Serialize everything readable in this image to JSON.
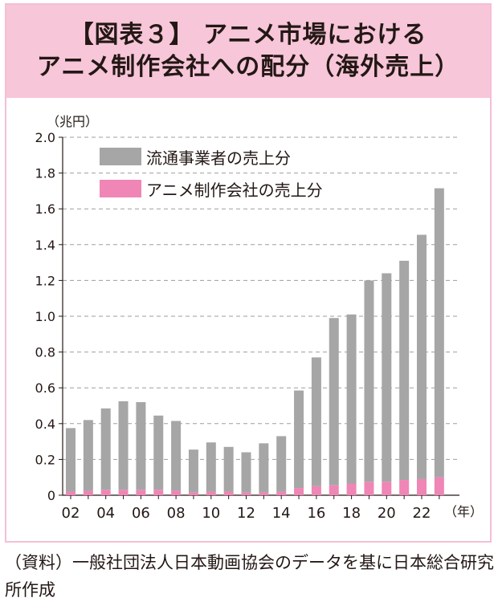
{
  "header": {
    "line1": "【図表３】 アニメ市場における",
    "line2": "アニメ制作会社への配分（海外売上）"
  },
  "source_note": "（資料）一般社団法人日本動画協会のデータを基に日本総合研究所作成",
  "colors": {
    "header_bg": "#f7c6d9",
    "distributor": "#a6a6a6",
    "studio": "#ef86b5"
  },
  "chart_data": {
    "type": "bar",
    "stacked": true,
    "unit_label": "（兆円）",
    "x_unit_label": "（年）",
    "x": [
      2002,
      2003,
      2004,
      2005,
      2006,
      2007,
      2008,
      2009,
      2010,
      2011,
      2012,
      2013,
      2014,
      2015,
      2016,
      2017,
      2018,
      2019,
      2020,
      2021,
      2022,
      2023
    ],
    "x_tick_labels": [
      "02",
      "04",
      "06",
      "08",
      "10",
      "12",
      "14",
      "16",
      "18",
      "20",
      "22"
    ],
    "x_tick_years": [
      2002,
      2004,
      2006,
      2008,
      2010,
      2012,
      2014,
      2016,
      2018,
      2020,
      2022
    ],
    "ylim": [
      0,
      2.0
    ],
    "yticks": [
      0,
      0.2,
      0.4,
      0.6,
      0.8,
      1.0,
      1.2,
      1.4,
      1.6,
      1.8,
      2.0
    ],
    "ytick_labels": [
      "0",
      "0.2",
      "0.4",
      "0.6",
      "0.8",
      "1.0",
      "1.2",
      "1.4",
      "1.6",
      "1.8",
      "2.0"
    ],
    "grid": true,
    "legend_position": "top-left",
    "series": [
      {
        "name": "アニメ制作会社の売上分",
        "values": [
          0.02,
          0.025,
          0.03,
          0.03,
          0.03,
          0.03,
          0.025,
          0.015,
          0.02,
          0.02,
          0.015,
          0.015,
          0.02,
          0.04,
          0.05,
          0.055,
          0.065,
          0.075,
          0.075,
          0.085,
          0.09,
          0.1
        ]
      },
      {
        "name": "流通事業者の売上分",
        "values": [
          0.355,
          0.395,
          0.455,
          0.495,
          0.49,
          0.415,
          0.39,
          0.24,
          0.275,
          0.25,
          0.225,
          0.275,
          0.31,
          0.545,
          0.72,
          0.935,
          0.945,
          1.125,
          1.165,
          1.225,
          1.365,
          1.615
        ]
      }
    ]
  }
}
